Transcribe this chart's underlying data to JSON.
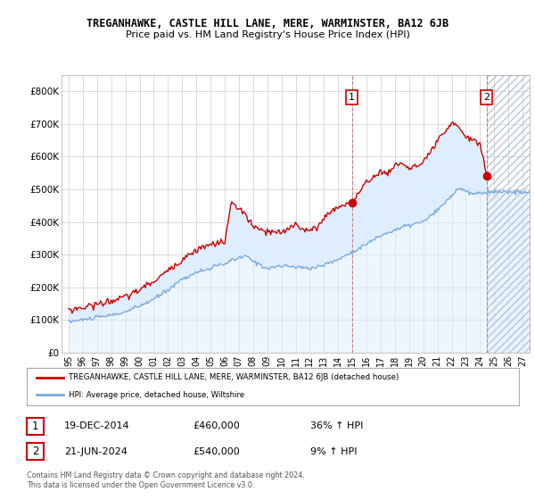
{
  "title": "TREGANHAWKE, CASTLE HILL LANE, MERE, WARMINSTER, BA12 6JB",
  "subtitle": "Price paid vs. HM Land Registry's House Price Index (HPI)",
  "hpi_label": "HPI: Average price, detached house, Wiltshire",
  "property_label": "TREGANHAWKE, CASTLE HILL LANE, MERE, WARMINSTER, BA12 6JB (detached house)",
  "red_color": "#cc0000",
  "blue_color": "#7aaadd",
  "fill_color": "#ddeeff",
  "background_color": "#ffffff",
  "grid_color": "#cccccc",
  "annotation1": {
    "num": "1",
    "date": "19-DEC-2014",
    "price": "£460,000",
    "hpi": "36% ↑ HPI",
    "x": 2014.96
  },
  "annotation2": {
    "num": "2",
    "date": "21-JUN-2024",
    "price": "£540,000",
    "hpi": "9% ↑ HPI",
    "x": 2024.47
  },
  "ylim": [
    0,
    850000
  ],
  "xlim": [
    1994.5,
    2027.5
  ],
  "yticks": [
    0,
    100000,
    200000,
    300000,
    400000,
    500000,
    600000,
    700000,
    800000
  ],
  "ytick_labels": [
    "£0",
    "£100K",
    "£200K",
    "£300K",
    "£400K",
    "£500K",
    "£600K",
    "£700K",
    "£800K"
  ],
  "xtick_years": [
    1995,
    1996,
    1997,
    1998,
    1999,
    2000,
    2001,
    2002,
    2003,
    2004,
    2005,
    2006,
    2007,
    2008,
    2009,
    2010,
    2011,
    2012,
    2013,
    2014,
    2015,
    2016,
    2017,
    2018,
    2019,
    2020,
    2021,
    2022,
    2023,
    2024,
    2025,
    2026,
    2027
  ],
  "footnote": "Contains HM Land Registry data © Crown copyright and database right 2024.\nThis data is licensed under the Open Government Licence v3.0."
}
